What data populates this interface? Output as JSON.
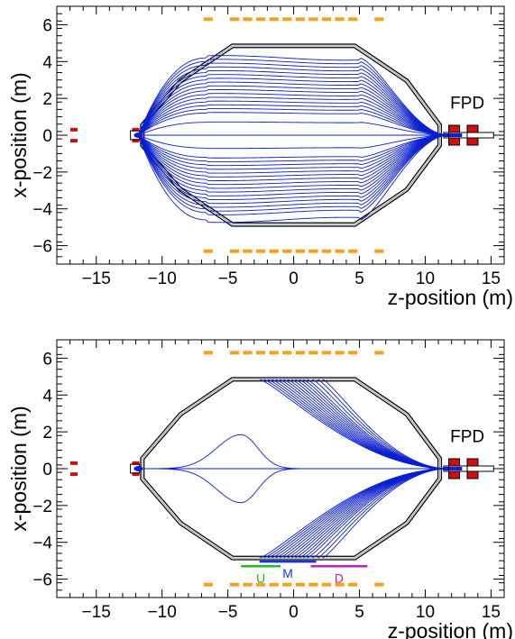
{
  "chart_data": [
    {
      "type": "line",
      "xlabel": "z-position (m)",
      "ylabel": "x-position (m)",
      "xlim": [
        -18,
        16
      ],
      "ylim": [
        -7,
        7
      ],
      "x_ticks": [
        -15,
        -10,
        -5,
        0,
        5,
        10,
        15
      ],
      "x_tick_labels": [
        "−15",
        "−10",
        "−5",
        "0",
        "5",
        "10",
        "15"
      ],
      "y_ticks": [
        -6,
        -4,
        -2,
        0,
        2,
        4,
        6
      ],
      "y_tick_labels": [
        "−6",
        "−4",
        "−2",
        "0",
        "2",
        "4",
        "6"
      ],
      "grid": false,
      "annotations": [
        {
          "text": "FPD",
          "x": 13.2,
          "y": 1.45
        }
      ],
      "vessel_outline": [
        [
          -4.65,
          4.85
        ],
        [
          4.65,
          4.85
        ],
        [
          8.6,
          2.95
        ],
        [
          11.1,
          0.55
        ],
        [
          11.1,
          -0.55
        ],
        [
          8.6,
          -2.95
        ],
        [
          4.65,
          -4.85
        ],
        [
          -4.65,
          -4.85
        ],
        [
          -8.6,
          -2.95
        ],
        [
          -11.5,
          -0.55
        ],
        [
          -11.5,
          0.55
        ],
        [
          -8.6,
          2.95
        ]
      ],
      "trajectories": {
        "from_z": -11.8,
        "to_z": 11.8,
        "flat_start": -6.6,
        "flat_end": 5.0,
        "max_heights": [
          4.2,
          4.0,
          3.8,
          3.6,
          3.4,
          3.2,
          3.0,
          2.8,
          2.6,
          2.4,
          2.2,
          2.0,
          1.8,
          1.6,
          1.4,
          1.2,
          0.7,
          0.0,
          -0.7,
          -1.2,
          -1.4,
          -1.6,
          -1.8,
          -2.0,
          -2.2,
          -2.4,
          -2.6,
          -2.8,
          -3.0,
          -3.2,
          -3.4,
          -3.6,
          -3.8,
          -4.0,
          -4.2,
          -4.6
        ]
      },
      "orange_rows": {
        "y": [
          6.3,
          -6.3
        ],
        "z_start": -7.0,
        "z_end": 7.0,
        "segments": 14
      },
      "red_markers": [
        {
          "z": -16.7,
          "y": [
            0.3,
            -0.3
          ]
        },
        {
          "z": -12.0,
          "y": [
            0.3,
            -0.3
          ]
        }
      ],
      "fpd_detectors": [
        12.2,
        13.6
      ],
      "series_color": "#0a1fcf",
      "marker_color": "#f5a01f",
      "detector_color": "#cc1111"
    },
    {
      "type": "line",
      "xlabel": "z-position (m)",
      "ylabel": "x-position (m)",
      "xlim": [
        -18,
        16
      ],
      "ylim": [
        -7,
        7
      ],
      "x_ticks": [
        -15,
        -10,
        -5,
        0,
        5,
        10,
        15
      ],
      "x_tick_labels": [
        "−15",
        "−10",
        "−5",
        "0",
        "5",
        "10",
        "15"
      ],
      "y_ticks": [
        -6,
        -4,
        -2,
        0,
        2,
        4,
        6
      ],
      "y_tick_labels": [
        "−6",
        "−4",
        "−2",
        "0",
        "2",
        "4",
        "6"
      ],
      "grid": false,
      "annotations": [
        {
          "text": "FPD",
          "x": 13.2,
          "y": 1.45
        }
      ],
      "vessel_outline": [
        [
          -4.65,
          4.85
        ],
        [
          4.65,
          4.85
        ],
        [
          8.6,
          2.95
        ],
        [
          11.1,
          0.55
        ],
        [
          11.1,
          -0.55
        ],
        [
          8.6,
          -2.95
        ],
        [
          4.65,
          -4.85
        ],
        [
          -4.65,
          -4.85
        ],
        [
          -8.6,
          -2.95
        ],
        [
          -11.5,
          -0.55
        ],
        [
          -11.5,
          0.55
        ],
        [
          -8.6,
          2.95
        ]
      ],
      "trajectories": {
        "to_z": 11.8,
        "start_z": [
          -2.6,
          -2.3,
          -2.0,
          -1.7,
          -1.4,
          -1.1,
          -0.8,
          -0.5,
          -0.2,
          0.1,
          0.4,
          0.7,
          1.0,
          1.4,
          1.8,
          2.2
        ],
        "wall_y": 4.85,
        "bump": {
          "from_z": -11.8,
          "peak_z": -4.0,
          "peak_y": 1.85
        }
      },
      "region_bars": [
        {
          "label": "U",
          "z": [
            -4.0,
            -1.0
          ],
          "y": -5.3,
          "color": "#1fbf1f"
        },
        {
          "label": "M",
          "z": [
            -2.6,
            1.7
          ],
          "y": -5.05,
          "color": "#1a2fe0"
        },
        {
          "label": "D",
          "z": [
            1.3,
            5.6
          ],
          "y": -5.3,
          "color": "#c21fc2"
        }
      ],
      "orange_rows": {
        "y": [
          6.3,
          -6.3
        ],
        "z_start": -7.0,
        "z_end": 7.0,
        "segments": 14
      },
      "red_markers": [
        {
          "z": -16.7,
          "y": [
            0.3,
            -0.3
          ]
        },
        {
          "z": -12.0,
          "y": [
            0.3,
            -0.3
          ]
        }
      ],
      "fpd_detectors": [
        12.2,
        13.6
      ],
      "series_color": "#0a1fcf",
      "marker_color": "#f5a01f",
      "detector_color": "#cc1111"
    }
  ]
}
